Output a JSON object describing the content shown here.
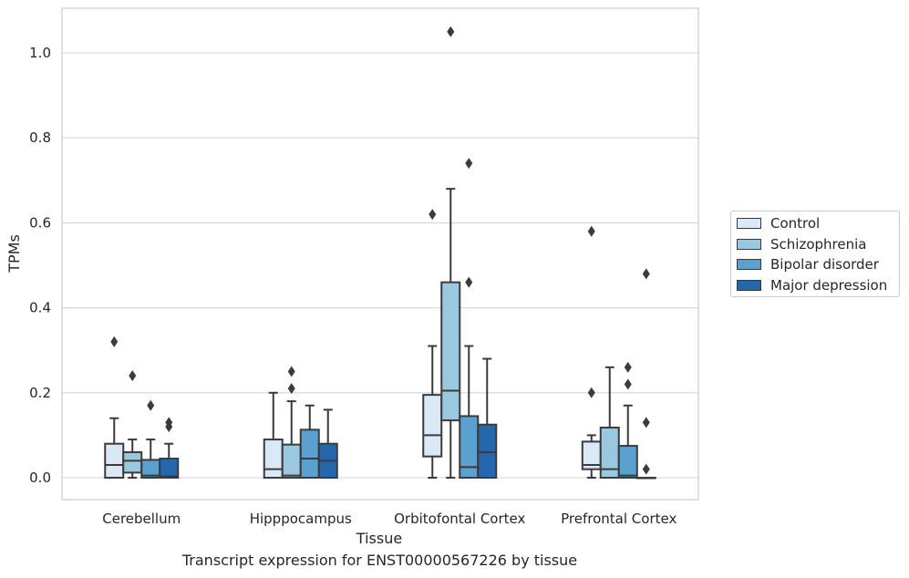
{
  "caption": "Transcript expression for ENST00000567226 by tissue",
  "legend": {
    "items": [
      {
        "label": "Control",
        "color": "#dbe9f6"
      },
      {
        "label": "Schizophrenia",
        "color": "#9ac8e0"
      },
      {
        "label": "Bipolar disorder",
        "color": "#5aa1cf"
      },
      {
        "label": "Major depression",
        "color": "#2567ad"
      }
    ]
  },
  "chart_data": {
    "type": "box",
    "title": "",
    "xlabel": "Tissue",
    "ylabel": "TPMs",
    "categories": [
      "Cerebellum",
      "Hipppocampus",
      "Orbitofontal Cortex",
      "Prefrontal Cortex"
    ],
    "ylim": [
      -0.05,
      1.1
    ],
    "yticks": [
      0.0,
      0.2,
      0.4,
      0.6,
      0.8,
      1.0
    ],
    "ytick_labels": [
      "0.0",
      "0.2",
      "0.4",
      "0.6",
      "0.8",
      "1.0"
    ],
    "grid": true,
    "legend_position": "right",
    "series": [
      {
        "name": "Control",
        "color": "#dbe9f6",
        "boxes": [
          {
            "whislo": 0.0,
            "q1": 0.0,
            "med": 0.03,
            "q3": 0.08,
            "whishi": 0.14,
            "fliers": [
              0.32
            ]
          },
          {
            "whislo": 0.0,
            "q1": 0.0,
            "med": 0.02,
            "q3": 0.09,
            "whishi": 0.2,
            "fliers": []
          },
          {
            "whislo": 0.0,
            "q1": 0.05,
            "med": 0.1,
            "q3": 0.195,
            "whishi": 0.31,
            "fliers": [
              0.62
            ]
          },
          {
            "whislo": 0.0,
            "q1": 0.02,
            "med": 0.03,
            "q3": 0.085,
            "whishi": 0.1,
            "fliers": [
              0.2,
              0.58
            ]
          }
        ]
      },
      {
        "name": "Schizophrenia",
        "color": "#9ac8e0",
        "boxes": [
          {
            "whislo": 0.0,
            "q1": 0.012,
            "med": 0.04,
            "q3": 0.06,
            "whishi": 0.09,
            "fliers": [
              0.24
            ]
          },
          {
            "whislo": 0.0,
            "q1": 0.0,
            "med": 0.005,
            "q3": 0.078,
            "whishi": 0.18,
            "fliers": [
              0.21,
              0.25
            ]
          },
          {
            "whislo": 0.0,
            "q1": 0.135,
            "med": 0.205,
            "q3": 0.46,
            "whishi": 0.68,
            "fliers": [
              1.05
            ]
          },
          {
            "whislo": 0.0,
            "q1": 0.0,
            "med": 0.02,
            "q3": 0.118,
            "whishi": 0.26,
            "fliers": []
          }
        ]
      },
      {
        "name": "Bipolar disorder",
        "color": "#5aa1cf",
        "boxes": [
          {
            "whislo": 0.0,
            "q1": 0.0,
            "med": 0.005,
            "q3": 0.042,
            "whishi": 0.09,
            "fliers": [
              0.17
            ]
          },
          {
            "whislo": 0.0,
            "q1": 0.0,
            "med": 0.045,
            "q3": 0.113,
            "whishi": 0.17,
            "fliers": []
          },
          {
            "whislo": 0.0,
            "q1": 0.0,
            "med": 0.025,
            "q3": 0.145,
            "whishi": 0.31,
            "fliers": [
              0.46,
              0.74
            ]
          },
          {
            "whislo": 0.0,
            "q1": 0.0,
            "med": 0.005,
            "q3": 0.075,
            "whishi": 0.17,
            "fliers": [
              0.22,
              0.26
            ]
          }
        ]
      },
      {
        "name": "Major depression",
        "color": "#2567ad",
        "boxes": [
          {
            "whislo": 0.0,
            "q1": 0.0,
            "med": 0.003,
            "q3": 0.045,
            "whishi": 0.08,
            "fliers": [
              0.12,
              0.13
            ]
          },
          {
            "whislo": 0.0,
            "q1": 0.0,
            "med": 0.04,
            "q3": 0.08,
            "whishi": 0.16,
            "fliers": []
          },
          {
            "whislo": 0.0,
            "q1": 0.0,
            "med": 0.06,
            "q3": 0.125,
            "whishi": 0.28,
            "fliers": []
          },
          {
            "whislo": 0.0,
            "q1": 0.0,
            "med": 0.0,
            "q3": 0.0,
            "whishi": 0.0,
            "fliers": [
              0.02,
              0.13,
              0.48
            ]
          }
        ]
      }
    ]
  }
}
